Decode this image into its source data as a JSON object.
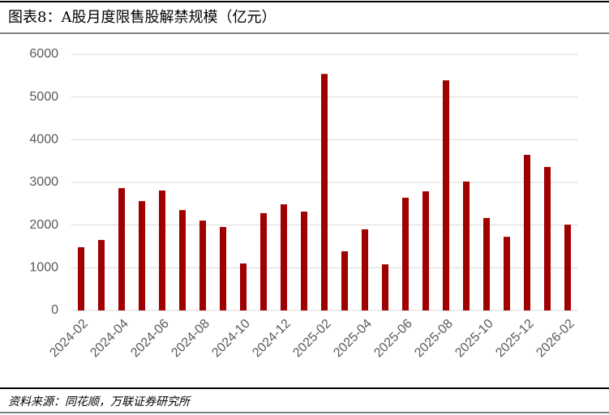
{
  "chart_data": {
    "type": "bar",
    "title": "图表8：A股月度限售股解禁规模（亿元）",
    "source": "资料来源：同花顺，万联证券研究所",
    "categories": [
      "2024-02",
      null,
      "2024-04",
      null,
      "2024-06",
      null,
      "2024-08",
      null,
      "2024-10",
      null,
      "2024-12",
      null,
      "2025-02",
      null,
      "2025-04",
      null,
      "2025-06",
      null,
      "2025-08",
      null,
      "2025-10",
      null,
      "2025-12",
      null,
      "2026-02"
    ],
    "values": [
      1480,
      1650,
      2865,
      2560,
      2810,
      2350,
      2105,
      1955,
      1100,
      2280,
      2485,
      2315,
      5540,
      1385,
      1900,
      1080,
      2640,
      2790,
      5390,
      3020,
      2165,
      1725,
      3645,
      3360,
      2010
    ],
    "color": "#a00000",
    "ylim": [
      0,
      6000
    ],
    "yticks": [
      0,
      1000,
      2000,
      3000,
      4000,
      5000,
      6000
    ],
    "grid": true
  }
}
